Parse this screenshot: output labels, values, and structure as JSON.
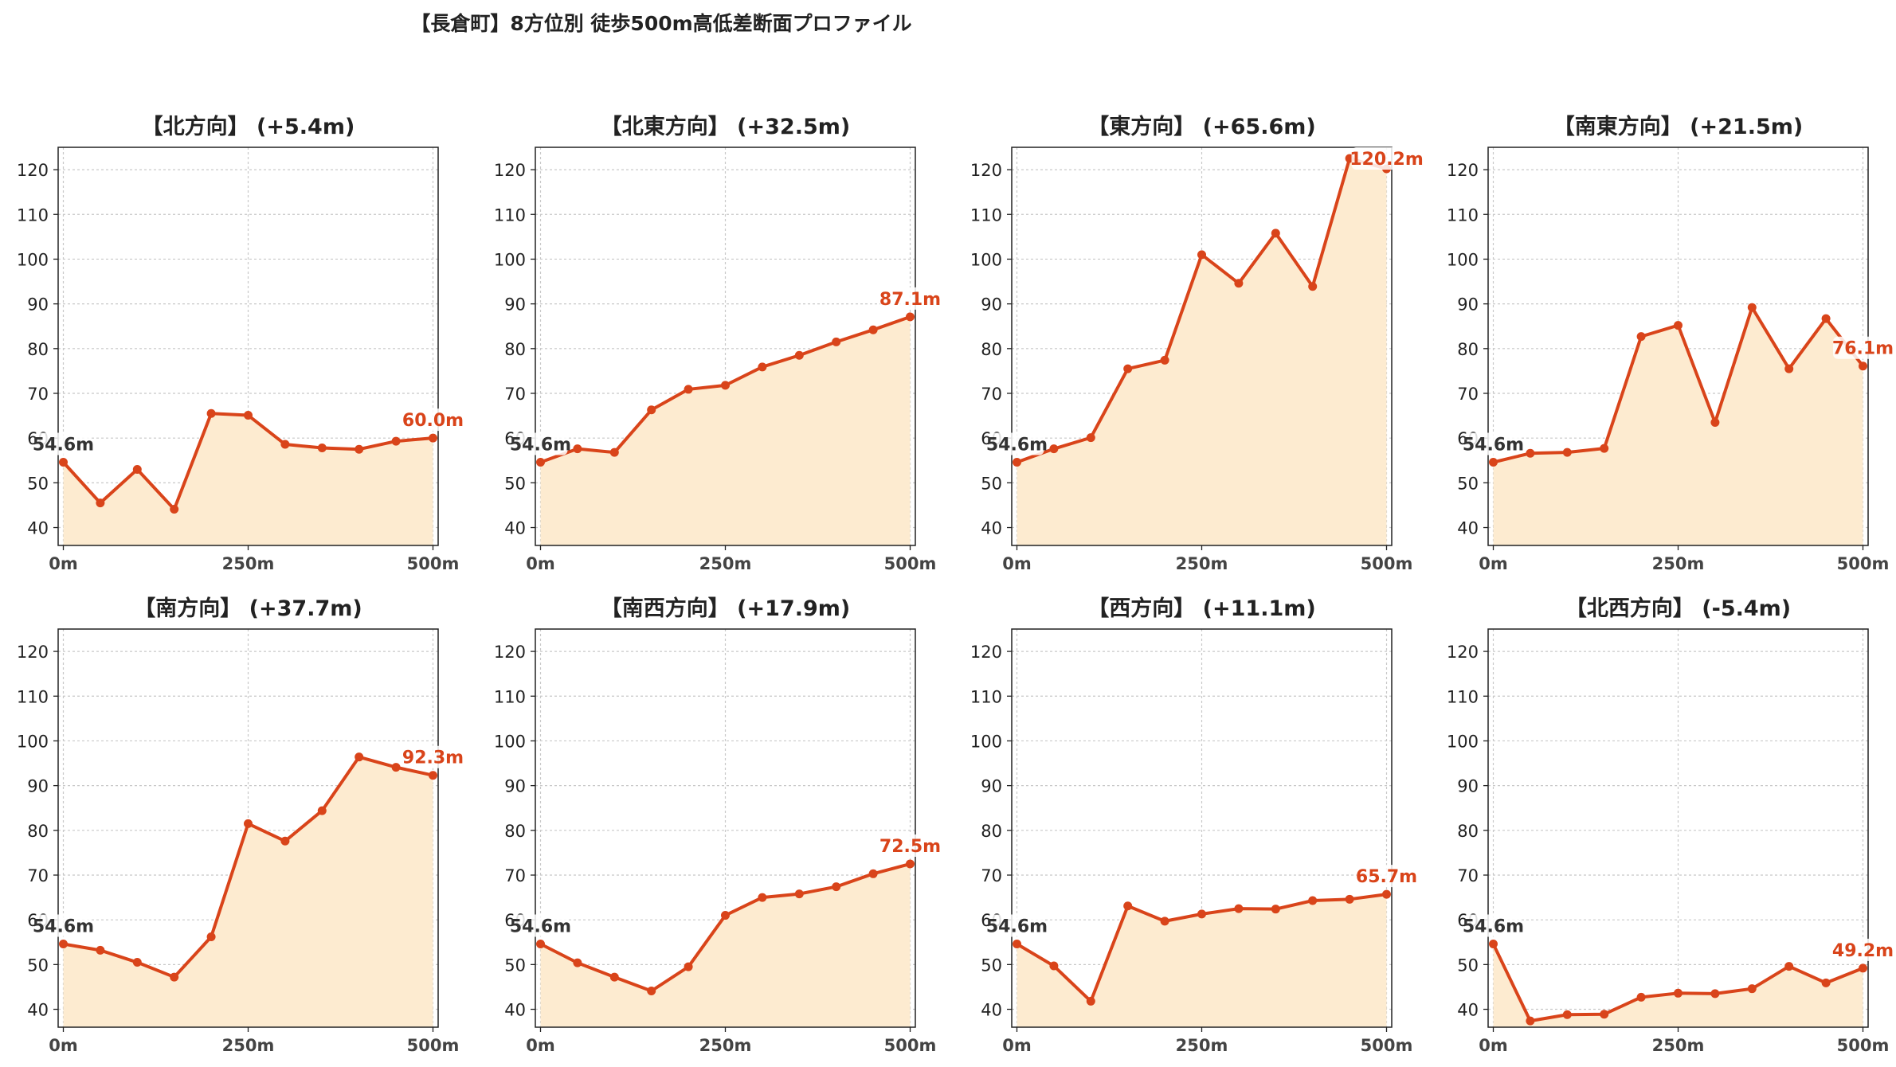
{
  "page_title": "【長倉町】8方位別 徒歩500m高低差断面プロファイル",
  "colors": {
    "line": "#d9441a",
    "fill": "#fdebd0",
    "start_label": "#333333",
    "end_label": "#d9441a",
    "grid": "#c8c8c8"
  },
  "chart_data": [
    {
      "type": "area",
      "title": "【北方向】 (+5.4m)",
      "x": [
        0,
        50,
        100,
        150,
        200,
        250,
        300,
        350,
        400,
        450,
        500
      ],
      "values": [
        54.6,
        45.5,
        53.0,
        44.1,
        65.5,
        65.1,
        58.6,
        57.8,
        57.5,
        59.3,
        60.0
      ],
      "xticks": [
        "0m",
        "250m",
        "500m"
      ],
      "yticks": [
        40,
        50,
        60,
        70,
        80,
        90,
        100,
        110,
        120
      ],
      "ylim": [
        36,
        125
      ],
      "xlim": [
        -7,
        507
      ],
      "grid": true,
      "start_label": "54.6m",
      "end_label": "60.0m"
    },
    {
      "type": "area",
      "title": "【北東方向】 (+32.5m)",
      "x": [
        0,
        50,
        100,
        150,
        200,
        250,
        300,
        350,
        400,
        450,
        500
      ],
      "values": [
        54.6,
        57.6,
        56.8,
        66.3,
        70.9,
        71.8,
        75.9,
        78.5,
        81.5,
        84.2,
        87.1
      ],
      "xticks": [
        "0m",
        "250m",
        "500m"
      ],
      "yticks": [
        40,
        50,
        60,
        70,
        80,
        90,
        100,
        110,
        120
      ],
      "ylim": [
        36,
        125
      ],
      "xlim": [
        -7,
        507
      ],
      "grid": true,
      "start_label": "54.6m",
      "end_label": "87.1m"
    },
    {
      "type": "area",
      "title": "【東方向】 (+65.6m)",
      "x": [
        0,
        50,
        100,
        150,
        200,
        250,
        300,
        350,
        400,
        450,
        500
      ],
      "values": [
        54.6,
        57.6,
        60.1,
        75.5,
        77.4,
        101.0,
        94.6,
        105.8,
        93.9,
        122.5,
        120.2
      ],
      "xticks": [
        "0m",
        "250m",
        "500m"
      ],
      "yticks": [
        40,
        50,
        60,
        70,
        80,
        90,
        100,
        110,
        120
      ],
      "ylim": [
        36,
        125
      ],
      "xlim": [
        -7,
        507
      ],
      "grid": true,
      "start_label": "54.6m",
      "end_label": "120.2m"
    },
    {
      "type": "area",
      "title": "【南東方向】 (+21.5m)",
      "x": [
        0,
        50,
        100,
        150,
        200,
        250,
        300,
        350,
        400,
        450,
        500
      ],
      "values": [
        54.6,
        56.6,
        56.8,
        57.7,
        82.7,
        85.2,
        63.5,
        89.2,
        75.5,
        86.7,
        76.1
      ],
      "xticks": [
        "0m",
        "250m",
        "500m"
      ],
      "yticks": [
        40,
        50,
        60,
        70,
        80,
        90,
        100,
        110,
        120
      ],
      "ylim": [
        36,
        125
      ],
      "xlim": [
        -7,
        507
      ],
      "grid": true,
      "start_label": "54.6m",
      "end_label": "76.1m"
    },
    {
      "type": "area",
      "title": "【南方向】 (+37.7m)",
      "x": [
        0,
        50,
        100,
        150,
        200,
        250,
        300,
        350,
        400,
        450,
        500
      ],
      "values": [
        54.6,
        53.2,
        50.5,
        47.2,
        56.2,
        81.5,
        77.6,
        84.4,
        96.4,
        94.1,
        92.3
      ],
      "xticks": [
        "0m",
        "250m",
        "500m"
      ],
      "yticks": [
        40,
        50,
        60,
        70,
        80,
        90,
        100,
        110,
        120
      ],
      "ylim": [
        36,
        125
      ],
      "xlim": [
        -7,
        507
      ],
      "grid": true,
      "start_label": "54.6m",
      "end_label": "92.3m"
    },
    {
      "type": "area",
      "title": "【南西方向】 (+17.9m)",
      "x": [
        0,
        50,
        100,
        150,
        200,
        250,
        300,
        350,
        400,
        450,
        500
      ],
      "values": [
        54.6,
        50.4,
        47.2,
        44.1,
        49.5,
        61.0,
        65.0,
        65.8,
        67.4,
        70.3,
        72.5
      ],
      "xticks": [
        "0m",
        "250m",
        "500m"
      ],
      "yticks": [
        40,
        50,
        60,
        70,
        80,
        90,
        100,
        110,
        120
      ],
      "ylim": [
        36,
        125
      ],
      "xlim": [
        -7,
        507
      ],
      "grid": true,
      "start_label": "54.6m",
      "end_label": "72.5m"
    },
    {
      "type": "area",
      "title": "【西方向】 (+11.1m)",
      "x": [
        0,
        50,
        100,
        150,
        200,
        250,
        300,
        350,
        400,
        450,
        500
      ],
      "values": [
        54.6,
        49.7,
        41.8,
        63.1,
        59.7,
        61.3,
        62.5,
        62.4,
        64.3,
        64.6,
        65.7
      ],
      "xticks": [
        "0m",
        "250m",
        "500m"
      ],
      "yticks": [
        40,
        50,
        60,
        70,
        80,
        90,
        100,
        110,
        120
      ],
      "ylim": [
        36,
        125
      ],
      "xlim": [
        -7,
        507
      ],
      "grid": true,
      "start_label": "54.6m",
      "end_label": "65.7m"
    },
    {
      "type": "area",
      "title": "【北西方向】 (-5.4m)",
      "x": [
        0,
        50,
        100,
        150,
        200,
        250,
        300,
        350,
        400,
        450,
        500
      ],
      "values": [
        54.6,
        37.4,
        38.8,
        38.9,
        42.7,
        43.6,
        43.5,
        44.6,
        49.6,
        45.9,
        49.2
      ],
      "xticks": [
        "0m",
        "250m",
        "500m"
      ],
      "yticks": [
        40,
        50,
        60,
        70,
        80,
        90,
        100,
        110,
        120
      ],
      "ylim": [
        36,
        125
      ],
      "xlim": [
        -7,
        507
      ],
      "grid": true,
      "start_label": "54.6m",
      "end_label": "49.2m"
    }
  ]
}
